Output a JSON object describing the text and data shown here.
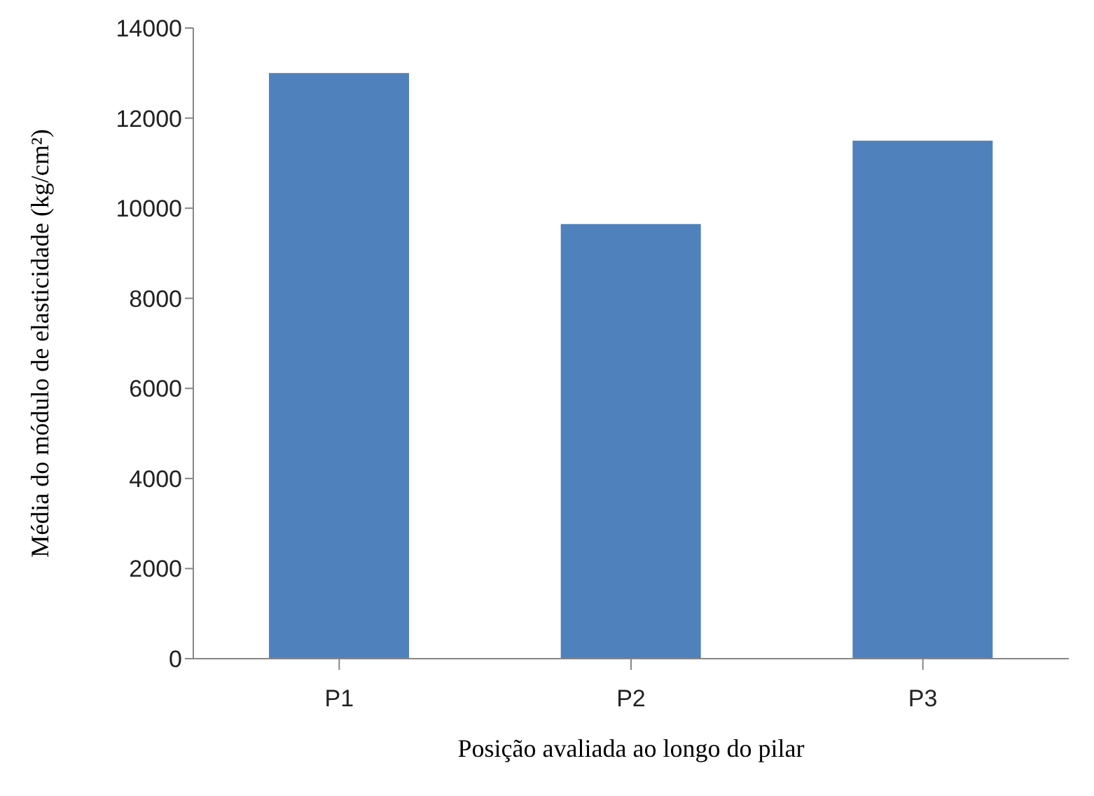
{
  "chart_data": {
    "type": "bar",
    "xlabel": "Posição avaliada ao longo do pilar",
    "ylabel": "Média do módulo de  elasticidade (kg/cm²)",
    "categories": [
      "P1",
      "P2",
      "P3"
    ],
    "values": [
      13000,
      9650,
      11500
    ],
    "color": "#4f81bd",
    "ylim": [
      0,
      14000
    ],
    "yticks": [
      0,
      2000,
      4000,
      6000,
      8000,
      10000,
      12000,
      14000
    ],
    "grid": false,
    "legend": false
  }
}
